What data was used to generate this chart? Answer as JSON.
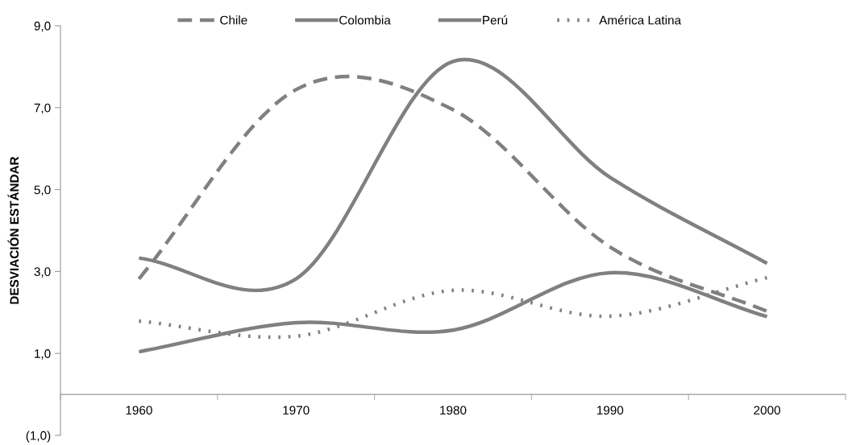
{
  "chart_data": {
    "type": "line",
    "ylabel": "DESVIACIÓN ESTÁNDAR",
    "categories": [
      "1960",
      "1970",
      "1980",
      "1990",
      "2000"
    ],
    "series": [
      {
        "name": "Chile",
        "color": "#808080",
        "line_style": "dashed",
        "values": [
          2.82,
          7.44,
          6.95,
          3.6,
          2.03
        ]
      },
      {
        "name": "Colombia",
        "color": "#808080",
        "line_style": "solid",
        "values": [
          3.33,
          2.82,
          8.13,
          5.3,
          3.2
        ]
      },
      {
        "name": "Perú",
        "color": "#808080",
        "line_style": "solid",
        "values": [
          1.04,
          1.75,
          1.57,
          2.97,
          1.9
        ]
      },
      {
        "name": "América Latina",
        "color": "#808080",
        "line_style": "dotted",
        "values": [
          1.79,
          1.42,
          2.54,
          1.91,
          2.85
        ]
      }
    ],
    "ylim": [
      -1,
      9
    ],
    "yticks": [
      {
        "value": -1,
        "label": "(1,0)"
      },
      {
        "value": 1,
        "label": "1,0"
      },
      {
        "value": 3,
        "label": "3,0"
      },
      {
        "value": 5,
        "label": "5,0"
      },
      {
        "value": 7,
        "label": "7,0"
      },
      {
        "value": 9,
        "label": "9,0"
      }
    ],
    "grid": false,
    "legend": "top",
    "marker": "none"
  }
}
